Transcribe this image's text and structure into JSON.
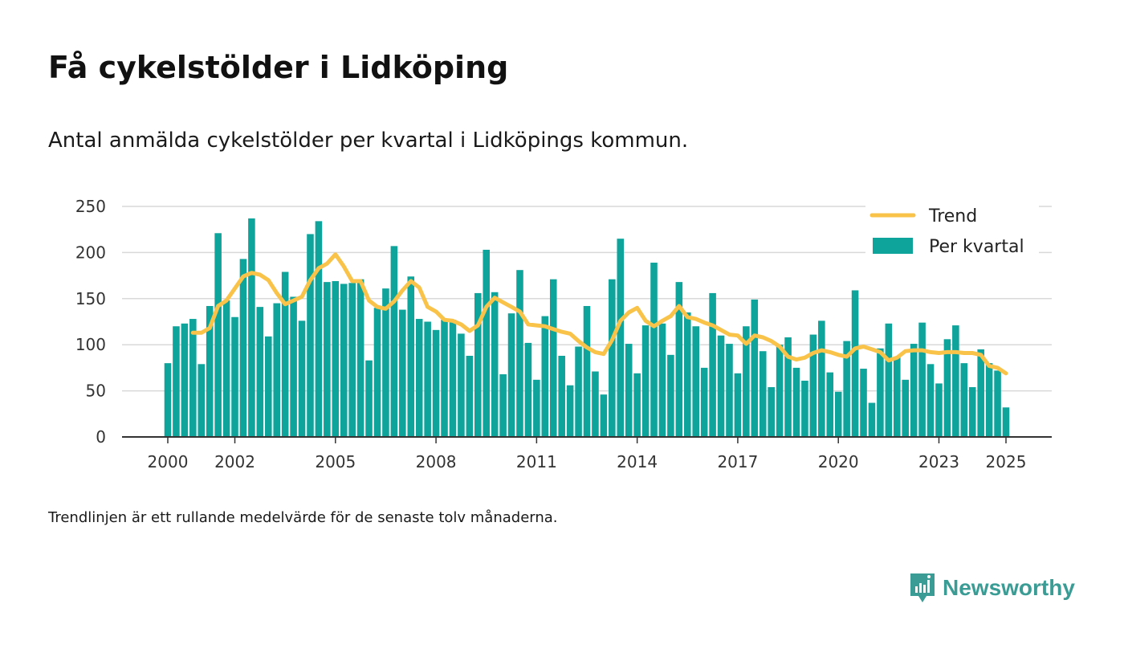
{
  "title": "Få cykelstölder i Lidköping",
  "subtitle": "Antal anmälda cykelstölder per kvartal i Lidköpings kommun.",
  "footnote": "Trendlinjen är ett rullande medelvärde för de senaste tolv månaderna.",
  "brand": {
    "name": "Newsworthy",
    "color": "#3a9c94"
  },
  "colors": {
    "bars": "#0ea39b",
    "trend": "#f9c34a",
    "grid": "#d9d9d9",
    "axis": "#333333"
  },
  "chart_data": {
    "type": "bar",
    "xlabel": "",
    "ylabel": "",
    "ylim": [
      0,
      250
    ],
    "yticks": [
      "0",
      "50",
      "100",
      "150",
      "200",
      "250"
    ],
    "xticks": [
      "2000",
      "2002",
      "2005",
      "2008",
      "2011",
      "2014",
      "2017",
      "2020",
      "2023",
      "2025"
    ],
    "grid": true,
    "legend_position": "top-right",
    "x_start": "2000-Q1",
    "series": [
      {
        "name": "Per kvartal",
        "type": "bar",
        "values": [
          80,
          120,
          123,
          128,
          79,
          142,
          221,
          148,
          130,
          193,
          237,
          141,
          109,
          145,
          179,
          152,
          126,
          220,
          234,
          168,
          169,
          166,
          167,
          171,
          83,
          140,
          161,
          207,
          138,
          174,
          128,
          125,
          116,
          127,
          127,
          112,
          88,
          156,
          203,
          157,
          68,
          134,
          181,
          102,
          62,
          131,
          171,
          88,
          56,
          98,
          142,
          71,
          46,
          171,
          215,
          101,
          69,
          121,
          189,
          123,
          89,
          168,
          135,
          120,
          75,
          156,
          110,
          101,
          69,
          120,
          149,
          93,
          54,
          100,
          108,
          75,
          61,
          111,
          126,
          70,
          49,
          104,
          159,
          74,
          37,
          96,
          123,
          87,
          62,
          101,
          124,
          79,
          58,
          106,
          121,
          80,
          54,
          95,
          80,
          72,
          32
        ]
      },
      {
        "name": "Trend",
        "type": "line",
        "values": [
          null,
          null,
          null,
          113,
          113,
          118,
          142,
          148,
          161,
          174,
          178,
          176,
          170,
          156,
          144,
          148,
          152,
          170,
          183,
          188,
          198,
          185,
          169,
          169,
          148,
          141,
          139,
          147,
          159,
          169,
          162,
          141,
          136,
          127,
          126,
          122,
          115,
          121,
          141,
          151,
          146,
          141,
          136,
          122,
          121,
          120,
          117,
          114,
          112,
          104,
          97,
          92,
          90,
          105,
          126,
          135,
          140,
          126,
          120,
          126,
          131,
          142,
          130,
          128,
          124,
          121,
          116,
          111,
          110,
          101,
          110,
          108,
          104,
          98,
          87,
          84,
          86,
          91,
          94,
          92,
          89,
          87,
          96,
          98,
          95,
          92,
          83,
          86,
          93,
          94,
          94,
          92,
          91,
          92,
          92,
          91,
          91,
          89,
          77,
          75,
          69
        ]
      }
    ]
  }
}
